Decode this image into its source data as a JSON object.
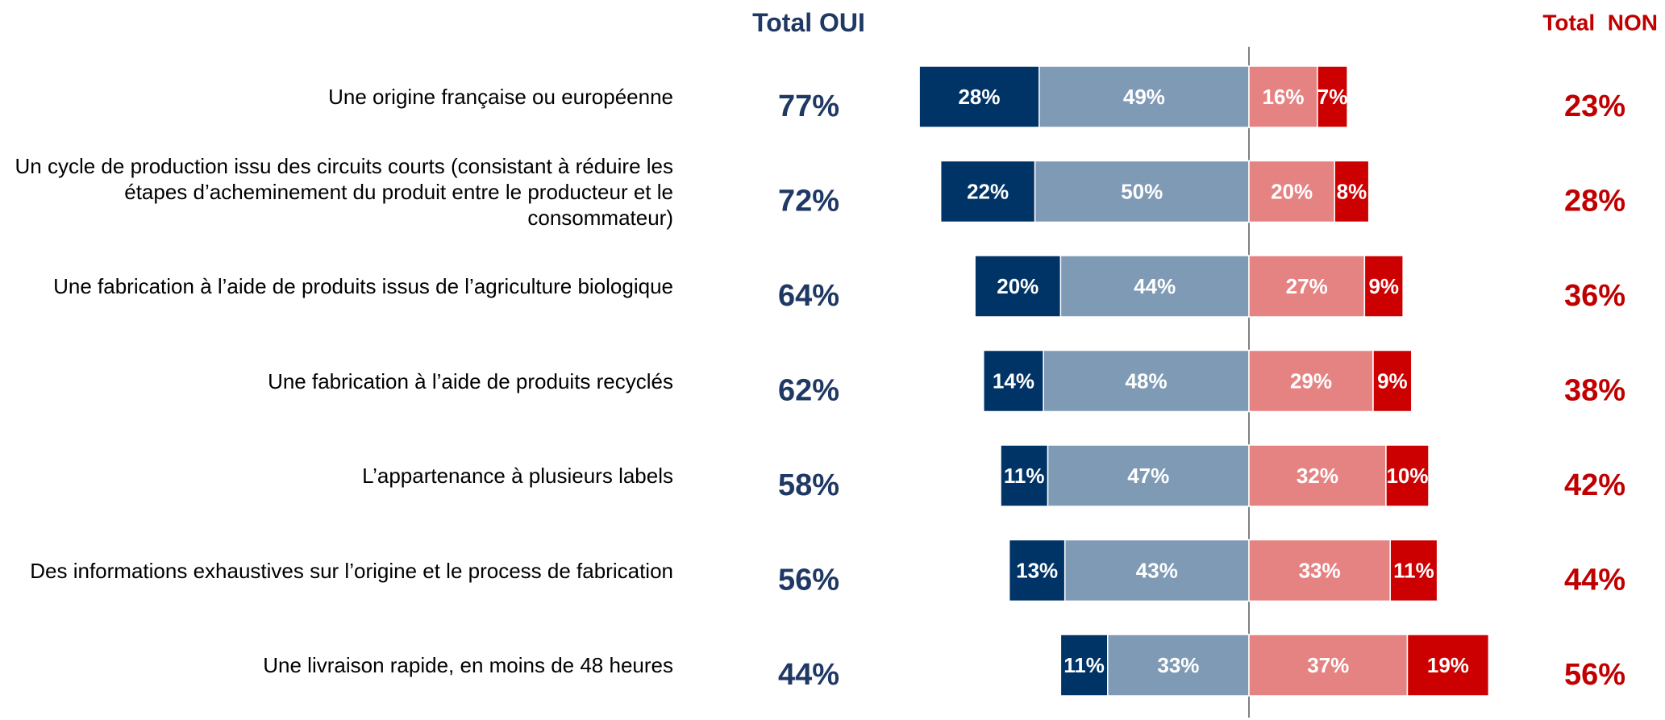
{
  "chart_data": {
    "type": "diverging_bar",
    "categories": [
      "Une origine française ou européenne",
      "Un cycle de production issu des circuits courts (consistant à réduire les étapes d’acheminement du produit entre le producteur et le consommateur)",
      "Une fabrication à l’aide de produits issus de l’agriculture biologique",
      "Une fabrication à l’aide de produits recyclés",
      "L’appartenance à plusieurs labels",
      "Des informations exhaustives sur l’origine et le process de fabrication",
      "Une livraison rapide, en moins de 48 heures"
    ],
    "series": [
      {
        "color": "#003366",
        "values": [
          28,
          22,
          20,
          14,
          11,
          13,
          11
        ],
        "value_labels": [
          "28%",
          "22%",
          "20%",
          "14%",
          "11%",
          "13%",
          "11%"
        ]
      },
      {
        "color": "#7f9ab5",
        "values": [
          49,
          50,
          44,
          48,
          47,
          43,
          33
        ],
        "value_labels": [
          "49%",
          "50%",
          "44%",
          "48%",
          "47%",
          "43%",
          "33%"
        ]
      },
      {
        "color": "#e58383",
        "values": [
          16,
          20,
          27,
          29,
          32,
          33,
          37
        ],
        "value_labels": [
          "16%",
          "20%",
          "27%",
          "29%",
          "32%",
          "33%",
          "37%"
        ]
      },
      {
        "color": "#cc0000",
        "values": [
          7,
          8,
          9,
          9,
          10,
          11,
          19
        ],
        "value_labels": [
          "7%",
          "8%",
          "9%",
          "9%",
          "10%",
          "11%",
          "19%"
        ]
      }
    ],
    "totals": [
      {
        "title": "Total OUI",
        "color": "#1f3864",
        "values": [
          77,
          72,
          64,
          62,
          58,
          56,
          44
        ],
        "value_labels": [
          "77%",
          "72%",
          "64%",
          "62%",
          "58%",
          "56%",
          "44%"
        ]
      },
      {
        "title": "Total  NON",
        "color": "#c00000",
        "values": [
          23,
          28,
          36,
          38,
          42,
          44,
          56
        ],
        "value_labels": [
          "23%",
          "28%",
          "36%",
          "38%",
          "42%",
          "44%",
          "56%"
        ]
      }
    ]
  }
}
